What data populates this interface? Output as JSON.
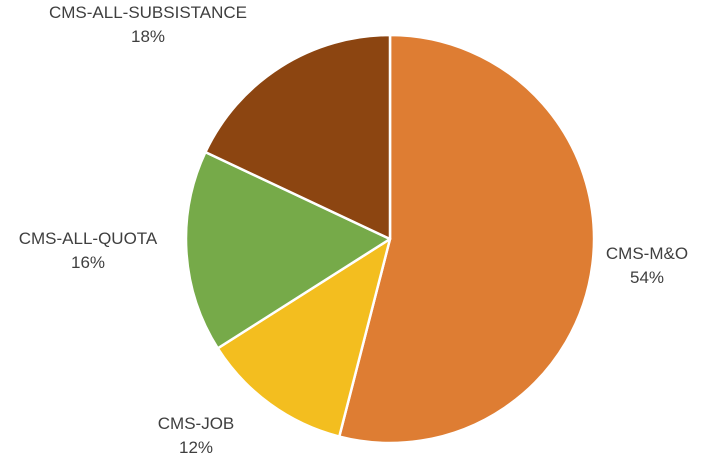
{
  "chart_data": {
    "type": "pie",
    "categories": [
      "CMS-M&O",
      "CMS-JOB",
      "CMS-ALL-QUOTA",
      "CMS-ALL-SUBSISTANCE"
    ],
    "values": [
      54,
      12,
      16,
      18
    ],
    "value_labels": [
      "54%",
      "12%",
      "16%",
      "18%"
    ],
    "colors": [
      "#DE7D33",
      "#F3BE1F",
      "#76AA49",
      "#8C4511"
    ],
    "start": "12 o'clock",
    "direction": "clockwise",
    "data_labels": "outside"
  }
}
